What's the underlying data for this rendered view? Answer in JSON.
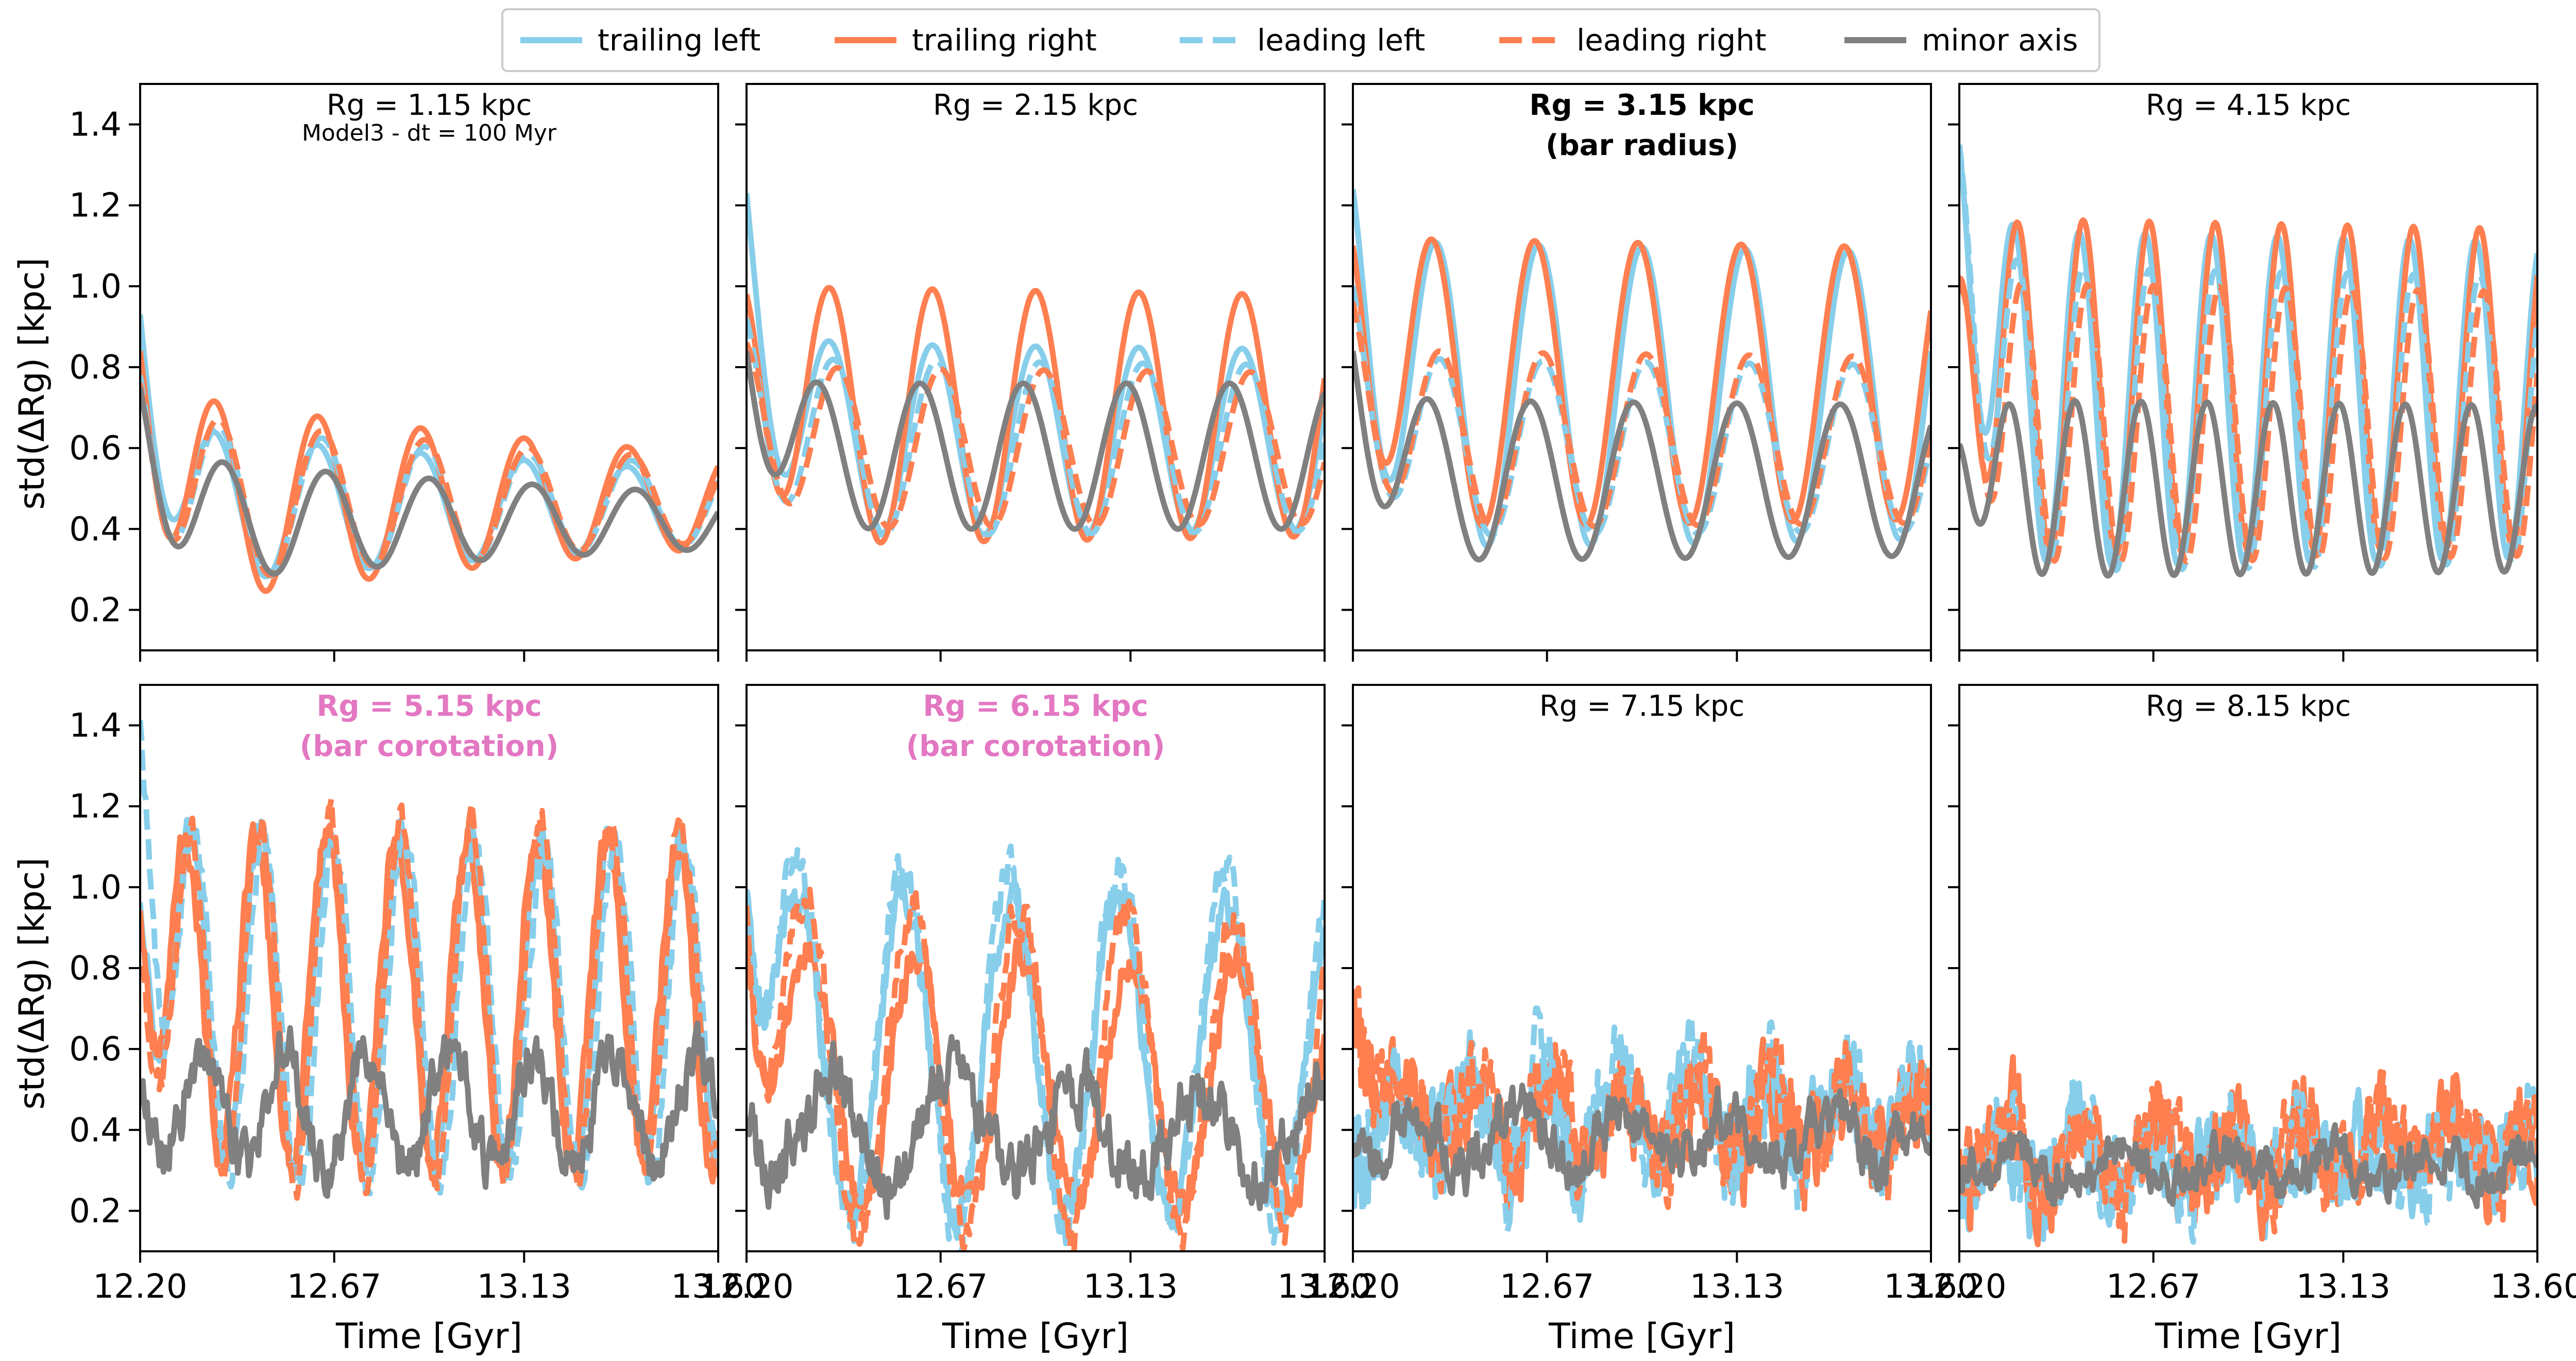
{
  "legend": {
    "items": [
      {
        "label": "trailing left",
        "color": "#87ceeb",
        "dash": "solid"
      },
      {
        "label": "trailing right",
        "color": "#ff7f50",
        "dash": "solid"
      },
      {
        "label": "leading left",
        "color": "#87ceeb",
        "dash": "dashed"
      },
      {
        "label": "leading right",
        "color": "#ff7f50",
        "dash": "dashed"
      },
      {
        "label": "minor axis",
        "color": "#808080",
        "dash": "solid"
      }
    ]
  },
  "chart_data": {
    "type": "line",
    "layout": "2x4 grid of panels, shared axes",
    "xlabel": "Time [Gyr]",
    "ylabel": "std(ΔRg) [kpc]",
    "xlim": [
      12.2,
      13.6
    ],
    "ylim": [
      0.1,
      1.5
    ],
    "xticks": [
      "12.20",
      "12.67",
      "13.13",
      "13.60"
    ],
    "yticks": [
      "0.2",
      "0.4",
      "0.6",
      "0.8",
      "1.0",
      "1.2",
      "1.4"
    ],
    "grid": false,
    "legend_position": "top-center, outside",
    "series_styles": {
      "trailing_left": {
        "color": "#87ceeb",
        "dash": "solid"
      },
      "trailing_right": {
        "color": "#ff7f50",
        "dash": "solid"
      },
      "leading_left": {
        "color": "#87ceeb",
        "dash": "dashed"
      },
      "leading_right": {
        "color": "#ff7f50",
        "dash": "dashed"
      },
      "minor_axis": {
        "color": "#808080",
        "dash": "solid"
      }
    },
    "panels": [
      {
        "title": "Rg = 1.15 kpc",
        "subtitle": "Model3 - dt = 100 Myr",
        "title_style": "normal",
        "title_color": "#000000",
        "series": {
          "trailing_left": {
            "baseline": 0.45,
            "amp": 0.2,
            "period": 0.25,
            "phase": 0.18,
            "decay": 0.55,
            "start": 0.93,
            "noise": 0.0
          },
          "trailing_right": {
            "baseline": 0.47,
            "amp": 0.27,
            "period": 0.25,
            "phase": 0.18,
            "decay": 0.6,
            "start": 0.84,
            "noise": 0.0
          },
          "leading_left": {
            "baseline": 0.46,
            "amp": 0.21,
            "period": 0.25,
            "phase": 0.19,
            "decay": 0.55,
            "start": 0.78,
            "noise": 0.0
          },
          "leading_right": {
            "baseline": 0.47,
            "amp": 0.22,
            "period": 0.25,
            "phase": 0.19,
            "decay": 0.55,
            "start": 0.76,
            "noise": 0.0
          },
          "minor_axis": {
            "baseline": 0.42,
            "amp": 0.16,
            "period": 0.25,
            "phase": 0.2,
            "decay": 0.6,
            "start": 0.75,
            "noise": 0.0
          }
        }
      },
      {
        "title": "Rg = 2.15 kpc",
        "subtitle": "",
        "title_style": "normal",
        "title_color": "#000000",
        "series": {
          "trailing_left": {
            "baseline": 0.62,
            "amp": 0.24,
            "period": 0.25,
            "phase": 0.2,
            "decay": 0.05,
            "start": 1.23,
            "noise": 0.0
          },
          "trailing_right": {
            "baseline": 0.68,
            "amp": 0.32,
            "period": 0.25,
            "phase": 0.2,
            "decay": 0.05,
            "start": 0.98,
            "noise": 0.0
          },
          "leading_left": {
            "baseline": 0.6,
            "amp": 0.22,
            "period": 0.25,
            "phase": 0.21,
            "decay": 0.05,
            "start": 0.92,
            "noise": 0.0
          },
          "leading_right": {
            "baseline": 0.6,
            "amp": 0.2,
            "period": 0.25,
            "phase": 0.22,
            "decay": 0.05,
            "start": 0.86,
            "noise": 0.0
          },
          "minor_axis": {
            "baseline": 0.58,
            "amp": 0.18,
            "period": 0.25,
            "phase": 0.17,
            "decay": 0.0,
            "start": 0.84,
            "noise": 0.0
          }
        }
      },
      {
        "title": "Rg = 3.15 kpc",
        "subtitle": "(bar radius)",
        "title_style": "bold",
        "title_color": "#000000",
        "series": {
          "trailing_left": {
            "baseline": 0.73,
            "amp": 0.38,
            "period": 0.25,
            "phase": 0.2,
            "decay": 0.05,
            "start": 1.24,
            "noise": 0.0
          },
          "trailing_right": {
            "baseline": 0.76,
            "amp": 0.36,
            "period": 0.25,
            "phase": 0.19,
            "decay": 0.05,
            "start": 1.1,
            "noise": 0.0
          },
          "leading_left": {
            "baseline": 0.6,
            "amp": 0.22,
            "period": 0.25,
            "phase": 0.21,
            "decay": 0.05,
            "start": 1.0,
            "noise": 0.0
          },
          "leading_right": {
            "baseline": 0.62,
            "amp": 0.22,
            "period": 0.25,
            "phase": 0.21,
            "decay": 0.05,
            "start": 0.96,
            "noise": 0.0
          },
          "minor_axis": {
            "baseline": 0.52,
            "amp": 0.2,
            "period": 0.25,
            "phase": 0.18,
            "decay": 0.05,
            "start": 0.84,
            "noise": 0.0
          }
        }
      },
      {
        "title": "Rg = 4.15 kpc",
        "subtitle": "",
        "title_style": "normal",
        "title_color": "#000000",
        "series": {
          "trailing_left": {
            "baseline": 0.72,
            "amp": 0.42,
            "period": 0.16,
            "phase": 0.13,
            "decay": 0.05,
            "start": 1.35,
            "noise": 0.0
          },
          "trailing_right": {
            "baseline": 0.75,
            "amp": 0.42,
            "period": 0.16,
            "phase": 0.14,
            "decay": 0.05,
            "start": 1.02,
            "noise": 0.0
          },
          "leading_left": {
            "baseline": 0.67,
            "amp": 0.38,
            "period": 0.16,
            "phase": 0.14,
            "decay": 0.05,
            "start": 1.35,
            "noise": 0.0
          },
          "leading_right": {
            "baseline": 0.66,
            "amp": 0.35,
            "period": 0.16,
            "phase": 0.15,
            "decay": 0.05,
            "start": 1.0,
            "noise": 0.0
          },
          "minor_axis": {
            "baseline": 0.5,
            "amp": 0.22,
            "period": 0.16,
            "phase": 0.12,
            "decay": 0.05,
            "start": 0.61,
            "noise": 0.0
          }
        }
      },
      {
        "title": "Rg = 5.15 kpc",
        "subtitle": "(bar corotation)",
        "title_style": "bold",
        "title_color": "#e377c2",
        "series": {
          "trailing_left": {
            "baseline": 0.72,
            "amp": 0.42,
            "period": 0.17,
            "phase": 0.12,
            "decay": 0.05,
            "start": 0.97,
            "noise": 0.04
          },
          "trailing_right": {
            "baseline": 0.72,
            "amp": 0.42,
            "period": 0.17,
            "phase": 0.11,
            "decay": 0.05,
            "start": 0.95,
            "noise": 0.04
          },
          "leading_left": {
            "baseline": 0.7,
            "amp": 0.44,
            "period": 0.17,
            "phase": 0.13,
            "decay": 0.05,
            "start": 1.42,
            "noise": 0.04
          },
          "leading_right": {
            "baseline": 0.72,
            "amp": 0.46,
            "period": 0.17,
            "phase": 0.12,
            "decay": 0.05,
            "start": 0.8,
            "noise": 0.04
          },
          "minor_axis": {
            "baseline": 0.45,
            "amp": 0.15,
            "period": 0.2,
            "phase": 0.15,
            "decay": 0.1,
            "start": 0.47,
            "noise": 0.06
          }
        }
      },
      {
        "title": "Rg = 6.15 kpc",
        "subtitle": "(bar corotation)",
        "title_style": "bold",
        "title_color": "#e377c2",
        "series": {
          "trailing_left": {
            "baseline": 0.58,
            "amp": 0.4,
            "period": 0.26,
            "phase": 0.12,
            "decay": 0.1,
            "start": 1.0,
            "noise": 0.05
          },
          "trailing_right": {
            "baseline": 0.52,
            "amp": 0.34,
            "period": 0.26,
            "phase": 0.15,
            "decay": 0.15,
            "start": 0.9,
            "noise": 0.05
          },
          "leading_left": {
            "baseline": 0.6,
            "amp": 0.46,
            "period": 0.26,
            "phase": 0.12,
            "decay": 0.05,
            "start": 1.0,
            "noise": 0.05
          },
          "leading_right": {
            "baseline": 0.55,
            "amp": 0.42,
            "period": 0.26,
            "phase": 0.14,
            "decay": 0.1,
            "start": 0.96,
            "noise": 0.05
          },
          "minor_axis": {
            "baseline": 0.4,
            "amp": 0.14,
            "period": 0.3,
            "phase": 0.2,
            "decay": 0.25,
            "start": 0.42,
            "noise": 0.07
          }
        }
      },
      {
        "title": "Rg = 7.15 kpc",
        "subtitle": "",
        "title_style": "normal",
        "title_color": "#000000",
        "series": {
          "trailing_left": {
            "baseline": 0.42,
            "amp": 0.12,
            "period": 0.18,
            "phase": 0.1,
            "decay": 0.4,
            "start": 0.4,
            "noise": 0.1
          },
          "trailing_right": {
            "baseline": 0.42,
            "amp": 0.12,
            "period": 0.18,
            "phase": 0.12,
            "decay": 0.4,
            "start": 0.7,
            "noise": 0.1
          },
          "leading_left": {
            "baseline": 0.42,
            "amp": 0.14,
            "period": 0.18,
            "phase": 0.1,
            "decay": 0.3,
            "start": 0.3,
            "noise": 0.11
          },
          "leading_right": {
            "baseline": 0.42,
            "amp": 0.14,
            "period": 0.18,
            "phase": 0.12,
            "decay": 0.3,
            "start": 0.72,
            "noise": 0.1
          },
          "minor_axis": {
            "baseline": 0.38,
            "amp": 0.08,
            "period": 0.25,
            "phase": 0.15,
            "decay": 0.3,
            "start": 0.35,
            "noise": 0.06
          }
        }
      },
      {
        "title": "Rg = 8.15 kpc",
        "subtitle": "",
        "title_style": "normal",
        "title_color": "#000000",
        "series": {
          "trailing_left": {
            "baseline": 0.33,
            "amp": 0.08,
            "period": 0.18,
            "phase": 0.1,
            "decay": 0.4,
            "start": 0.28,
            "noise": 0.1
          },
          "trailing_right": {
            "baseline": 0.35,
            "amp": 0.1,
            "period": 0.18,
            "phase": 0.12,
            "decay": 0.4,
            "start": 0.3,
            "noise": 0.1
          },
          "leading_left": {
            "baseline": 0.34,
            "amp": 0.1,
            "period": 0.18,
            "phase": 0.11,
            "decay": 0.4,
            "start": 0.25,
            "noise": 0.1
          },
          "leading_right": {
            "baseline": 0.34,
            "amp": 0.1,
            "period": 0.18,
            "phase": 0.12,
            "decay": 0.4,
            "start": 0.35,
            "noise": 0.1
          },
          "minor_axis": {
            "baseline": 0.31,
            "amp": 0.05,
            "period": 0.25,
            "phase": 0.15,
            "decay": 0.3,
            "start": 0.3,
            "noise": 0.05
          }
        }
      }
    ]
  }
}
